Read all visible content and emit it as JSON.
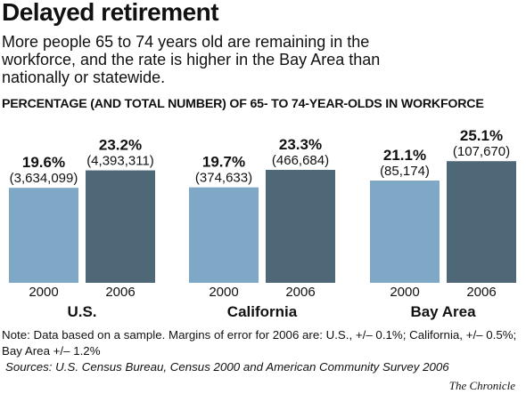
{
  "header": {
    "title": "Delayed retirement",
    "subtitle": "More people 65 to 74 years old are remaining in the workforce, and the rate is higher in the Bay Area than nationally or statewide.",
    "chart_heading": "PERCENTAGE (AND TOTAL NUMBER) OF 65- TO 74-YEAR-OLDS IN WORKFORCE"
  },
  "colors": {
    "year_2000": "#7fa7c6",
    "year_2006": "#4e6878"
  },
  "chart_data": {
    "type": "bar",
    "title": "PERCENTAGE (AND TOTAL NUMBER) OF 65- TO 74-YEAR-OLDS IN WORKFORCE",
    "groups": [
      {
        "name": "U.S.",
        "bars": [
          {
            "year": "2000",
            "value": 19.6,
            "label": "19.6%",
            "count": "(3,634,099)"
          },
          {
            "year": "2006",
            "value": 23.2,
            "label": "23.2%",
            "count": "(4,393,311)"
          }
        ]
      },
      {
        "name": "California",
        "bars": [
          {
            "year": "2000",
            "value": 19.7,
            "label": "19.7%",
            "count": "(374,633)"
          },
          {
            "year": "2006",
            "value": 23.3,
            "label": "23.3%",
            "count": "(466,684)"
          }
        ]
      },
      {
        "name": "Bay Area",
        "bars": [
          {
            "year": "2000",
            "value": 21.1,
            "label": "21.1%",
            "count": "(85,174)"
          },
          {
            "year": "2006",
            "value": 25.1,
            "label": "25.1%",
            "count": "(107,670)"
          }
        ]
      }
    ]
  },
  "footer": {
    "note": "Note: Data based on a sample. Margins of error for 2006 are: U.S., +/– 0.1%; California, +/– 0.5%; Bay Area +/– 1.2%",
    "sources": "Sources: U.S. Census Bureau, Census 2000 and American Community Survey 2006",
    "credit": "The Chronicle"
  }
}
